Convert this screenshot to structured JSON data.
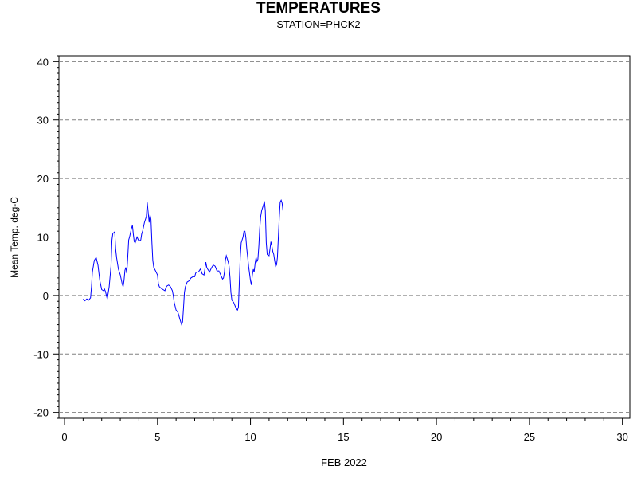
{
  "chart_data": {
    "type": "line",
    "title": "TEMPERATURES",
    "subtitle": "STATION=PHCK2",
    "xlabel": "FEB 2022",
    "ylabel": "Mean Temp. deg-C",
    "xlim": [
      -0.3,
      30.4
    ],
    "ylim": [
      -21,
      41
    ],
    "x_ticks": [
      0,
      5,
      10,
      15,
      20,
      25,
      30
    ],
    "y_ticks": [
      -20,
      -10,
      0,
      10,
      20,
      30,
      40
    ],
    "grid": "horizontal-dashed",
    "line_color": "#0000ff",
    "grid_color": "#808080",
    "series": [
      {
        "points": [
          [
            1.0,
            -0.6
          ],
          [
            1.1,
            -0.9
          ],
          [
            1.2,
            -0.6
          ],
          [
            1.3,
            -0.8
          ],
          [
            1.4,
            -0.4
          ],
          [
            1.45,
            1.5
          ],
          [
            1.5,
            4.0
          ],
          [
            1.6,
            6.0
          ],
          [
            1.7,
            6.5
          ],
          [
            1.8,
            5.2
          ],
          [
            1.9,
            2.5
          ],
          [
            2.0,
            1.0
          ],
          [
            2.1,
            0.8
          ],
          [
            2.15,
            1.1
          ],
          [
            2.2,
            0.7
          ],
          [
            2.3,
            -0.6
          ],
          [
            2.4,
            1.5
          ],
          [
            2.5,
            5.0
          ],
          [
            2.55,
            9.5
          ],
          [
            2.6,
            10.6
          ],
          [
            2.7,
            10.9
          ],
          [
            2.75,
            8.0
          ],
          [
            2.8,
            6.5
          ],
          [
            2.9,
            4.5
          ],
          [
            3.0,
            3.5
          ],
          [
            3.1,
            2.0
          ],
          [
            3.15,
            1.5
          ],
          [
            3.2,
            2.5
          ],
          [
            3.25,
            4.3
          ],
          [
            3.3,
            4.8
          ],
          [
            3.35,
            3.8
          ],
          [
            3.4,
            6.5
          ],
          [
            3.45,
            9.5
          ],
          [
            3.5,
            10.0
          ],
          [
            3.6,
            11.5
          ],
          [
            3.65,
            12.0
          ],
          [
            3.7,
            10.5
          ],
          [
            3.75,
            9.2
          ],
          [
            3.8,
            9.0
          ],
          [
            3.9,
            10.0
          ],
          [
            4.0,
            9.3
          ],
          [
            4.1,
            9.5
          ],
          [
            4.15,
            10.5
          ],
          [
            4.2,
            11.0
          ],
          [
            4.3,
            12.5
          ],
          [
            4.35,
            13.0
          ],
          [
            4.4,
            13.5
          ],
          [
            4.45,
            15.9
          ],
          [
            4.5,
            14.2
          ],
          [
            4.55,
            12.5
          ],
          [
            4.6,
            13.8
          ],
          [
            4.65,
            13.0
          ],
          [
            4.7,
            9.0
          ],
          [
            4.75,
            6.0
          ],
          [
            4.8,
            4.8
          ],
          [
            4.9,
            4.2
          ],
          [
            5.0,
            3.5
          ],
          [
            5.05,
            2.0
          ],
          [
            5.1,
            1.5
          ],
          [
            5.2,
            1.2
          ],
          [
            5.3,
            1.0
          ],
          [
            5.4,
            0.8
          ],
          [
            5.45,
            1.3
          ],
          [
            5.5,
            1.6
          ],
          [
            5.6,
            1.8
          ],
          [
            5.7,
            1.5
          ],
          [
            5.8,
            0.8
          ],
          [
            5.85,
            0.0
          ],
          [
            5.9,
            -1.2
          ],
          [
            6.0,
            -2.5
          ],
          [
            6.1,
            -2.9
          ],
          [
            6.2,
            -4.0
          ],
          [
            6.3,
            -5.0
          ],
          [
            6.35,
            -4.5
          ],
          [
            6.4,
            -2.0
          ],
          [
            6.45,
            0.5
          ],
          [
            6.5,
            1.5
          ],
          [
            6.6,
            2.3
          ],
          [
            6.7,
            2.5
          ],
          [
            6.8,
            3.0
          ],
          [
            6.9,
            3.2
          ],
          [
            7.0,
            3.2
          ],
          [
            7.05,
            3.8
          ],
          [
            7.1,
            4.0
          ],
          [
            7.2,
            4.0
          ],
          [
            7.3,
            4.5
          ],
          [
            7.35,
            4.2
          ],
          [
            7.4,
            3.7
          ],
          [
            7.5,
            3.5
          ],
          [
            7.55,
            4.5
          ],
          [
            7.6,
            5.7
          ],
          [
            7.65,
            4.8
          ],
          [
            7.7,
            4.5
          ],
          [
            7.8,
            4.0
          ],
          [
            7.9,
            4.7
          ],
          [
            8.0,
            5.2
          ],
          [
            8.1,
            5.0
          ],
          [
            8.2,
            4.2
          ],
          [
            8.3,
            4.2
          ],
          [
            8.4,
            3.5
          ],
          [
            8.5,
            2.8
          ],
          [
            8.55,
            3.0
          ],
          [
            8.6,
            4.0
          ],
          [
            8.65,
            6.0
          ],
          [
            8.7,
            6.8
          ],
          [
            8.8,
            5.8
          ],
          [
            8.85,
            5.0
          ],
          [
            8.9,
            3.0
          ],
          [
            8.95,
            0.5
          ],
          [
            9.0,
            -0.8
          ],
          [
            9.1,
            -1.2
          ],
          [
            9.2,
            -2.0
          ],
          [
            9.3,
            -2.5
          ],
          [
            9.35,
            -2.0
          ],
          [
            9.4,
            2.0
          ],
          [
            9.45,
            6.5
          ],
          [
            9.5,
            9.0
          ],
          [
            9.6,
            10.0
          ],
          [
            9.65,
            11.0
          ],
          [
            9.7,
            11.0
          ],
          [
            9.75,
            10.0
          ],
          [
            9.8,
            8.0
          ],
          [
            9.85,
            6.5
          ],
          [
            9.9,
            5.0
          ],
          [
            10.0,
            2.5
          ],
          [
            10.05,
            1.8
          ],
          [
            10.1,
            3.5
          ],
          [
            10.15,
            4.5
          ],
          [
            10.2,
            4.0
          ],
          [
            10.25,
            5.5
          ],
          [
            10.3,
            6.5
          ],
          [
            10.35,
            5.8
          ],
          [
            10.4,
            6.2
          ],
          [
            10.45,
            8.5
          ],
          [
            10.5,
            11.5
          ],
          [
            10.55,
            13.5
          ],
          [
            10.6,
            14.5
          ],
          [
            10.7,
            15.5
          ],
          [
            10.75,
            16.1
          ],
          [
            10.8,
            14.5
          ],
          [
            10.85,
            9.0
          ],
          [
            10.9,
            7.0
          ],
          [
            11.0,
            6.8
          ],
          [
            11.05,
            8.0
          ],
          [
            11.1,
            9.2
          ],
          [
            11.15,
            8.5
          ],
          [
            11.2,
            7.5
          ],
          [
            11.25,
            7.0
          ],
          [
            11.3,
            6.0
          ],
          [
            11.35,
            5.0
          ],
          [
            11.4,
            5.2
          ],
          [
            11.45,
            6.5
          ],
          [
            11.5,
            10.0
          ],
          [
            11.55,
            13.5
          ],
          [
            11.6,
            16.0
          ],
          [
            11.65,
            16.3
          ],
          [
            11.7,
            15.8
          ],
          [
            11.75,
            14.5
          ]
        ]
      }
    ]
  }
}
